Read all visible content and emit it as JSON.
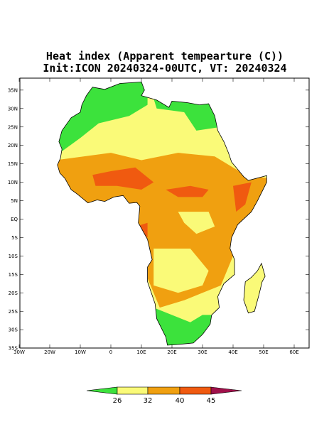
{
  "title": {
    "line1": "Heat index (Apparent tempearture (C))",
    "line2": "Init:ICON 20240324-00UTC, VT: 20240324"
  },
  "lat_labels": [
    "35N",
    "30N",
    "25N",
    "20N",
    "15N",
    "10N",
    "5N",
    "EQ",
    "5S",
    "10S",
    "15S",
    "20S",
    "25S",
    "30S",
    "35S"
  ],
  "lon_labels": [
    "30W",
    "20W",
    "10W",
    "0",
    "10E",
    "20E",
    "30E",
    "40E",
    "50E",
    "60E"
  ],
  "colorbar": {
    "levels": [
      26,
      32,
      40,
      45
    ]
  }
}
